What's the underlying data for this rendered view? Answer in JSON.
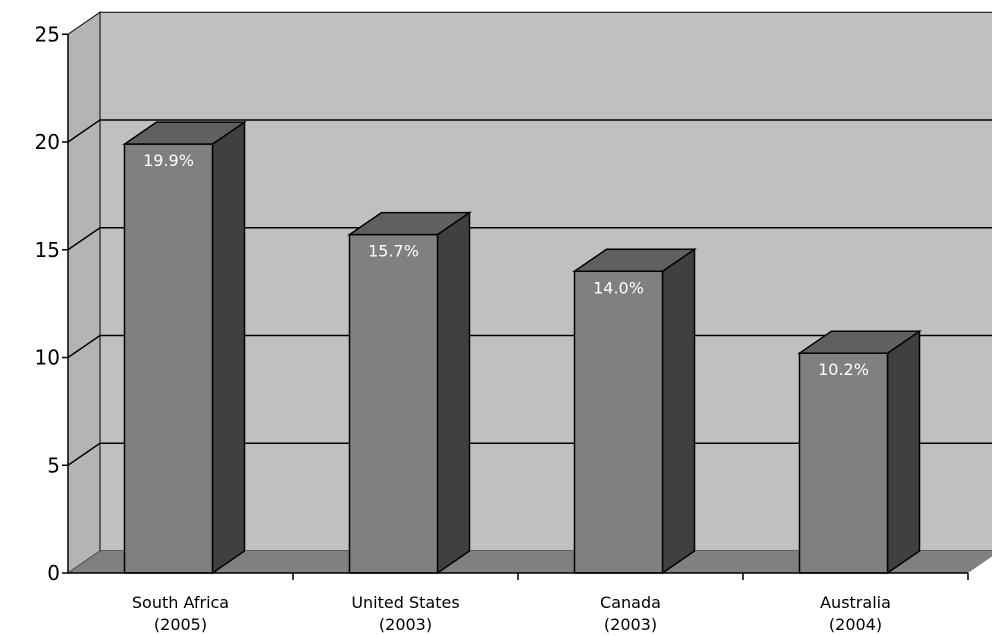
{
  "chart_data": {
    "type": "bar",
    "categories": [
      [
        "South Africa",
        "(2005)"
      ],
      [
        "United States",
        "(2003)"
      ],
      [
        "Canada",
        "(2003)"
      ],
      [
        "Australia",
        "(2004)"
      ]
    ],
    "values": [
      19.9,
      15.7,
      14.0,
      10.2
    ],
    "data_labels": [
      "19.9%",
      "15.7%",
      "14.0%",
      "10.2%"
    ],
    "title": "",
    "xlabel": "",
    "ylabel": "",
    "ylim": [
      0,
      25
    ],
    "yticks": [
      "0",
      "5",
      "10",
      "15",
      "20",
      "25"
    ],
    "grid": true,
    "legend": "none",
    "colors": {
      "wall": "#c0c0c0",
      "floor": "#808080",
      "bar_front": "#808080",
      "bar_side": "#404040",
      "bar_top": "#606060",
      "gridline": "#000000"
    }
  }
}
